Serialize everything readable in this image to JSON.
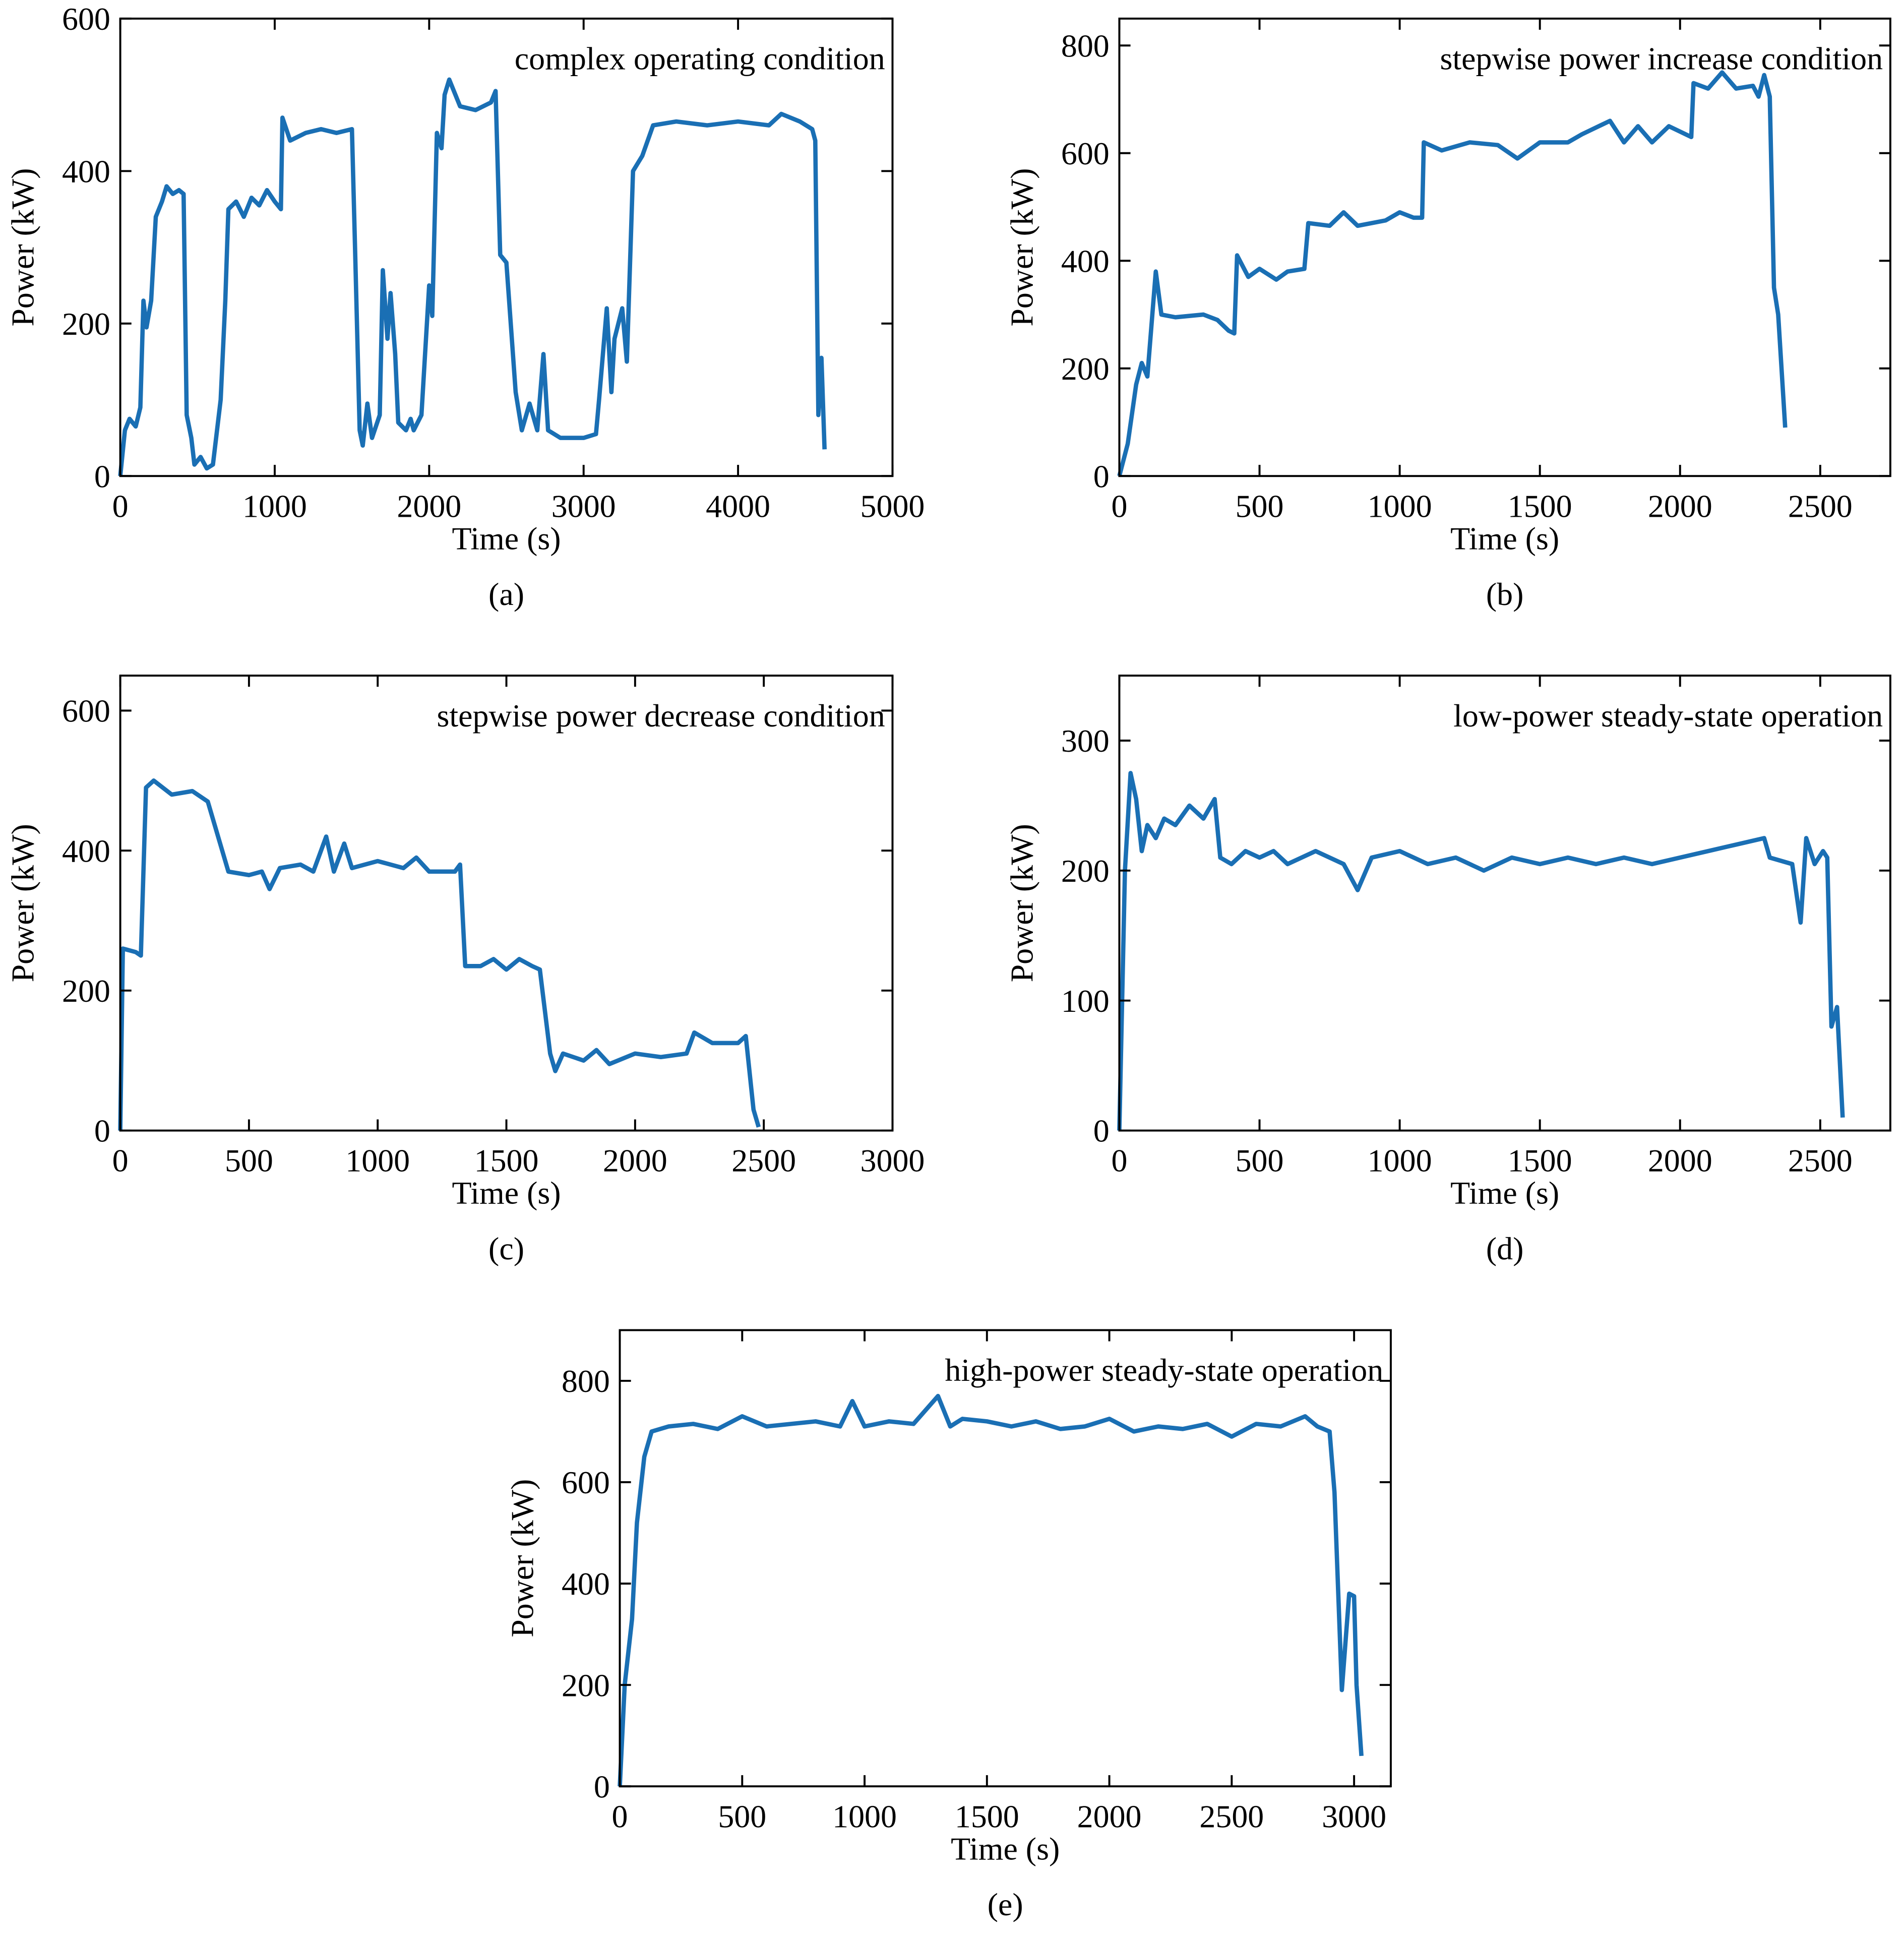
{
  "chart_data": [
    {
      "type": "line",
      "title": "complex operating condition",
      "panel": "(a)",
      "xlabel": "Time (s)",
      "ylabel": "Power (kW)",
      "color": "#1a6fb4",
      "xlim": [
        0,
        5000
      ],
      "xticks": [
        0,
        1000,
        2000,
        3000,
        4000,
        5000
      ],
      "ylim": [
        0,
        600
      ],
      "yticks": [
        0,
        200,
        400,
        600
      ],
      "x": [
        0,
        30,
        60,
        100,
        130,
        150,
        170,
        200,
        230,
        270,
        300,
        340,
        380,
        410,
        430,
        460,
        480,
        520,
        560,
        600,
        650,
        680,
        700,
        750,
        800,
        850,
        900,
        950,
        1000,
        1040,
        1050,
        1100,
        1200,
        1300,
        1400,
        1500,
        1520,
        1550,
        1570,
        1600,
        1630,
        1680,
        1700,
        1730,
        1750,
        1780,
        1800,
        1850,
        1880,
        1900,
        1950,
        2000,
        2020,
        2050,
        2080,
        2100,
        2130,
        2200,
        2300,
        2400,
        2430,
        2460,
        2500,
        2560,
        2600,
        2650,
        2700,
        2740,
        2770,
        2850,
        3000,
        3080,
        3100,
        3150,
        3180,
        3200,
        3250,
        3280,
        3320,
        3380,
        3450,
        3600,
        3800,
        4000,
        4200,
        4280,
        4400,
        4480,
        4500,
        4520,
        4540,
        4560
      ],
      "values": [
        0,
        60,
        75,
        65,
        90,
        230,
        195,
        230,
        340,
        360,
        380,
        370,
        375,
        370,
        80,
        50,
        15,
        25,
        10,
        15,
        100,
        230,
        350,
        360,
        340,
        365,
        355,
        375,
        360,
        350,
        470,
        440,
        450,
        455,
        450,
        455,
        300,
        60,
        40,
        95,
        50,
        80,
        270,
        180,
        240,
        160,
        70,
        60,
        75,
        60,
        80,
        250,
        210,
        450,
        430,
        500,
        520,
        485,
        480,
        490,
        505,
        290,
        280,
        110,
        60,
        95,
        60,
        160,
        60,
        50,
        50,
        55,
        100,
        220,
        110,
        180,
        220,
        150,
        400,
        420,
        460,
        465,
        460,
        465,
        460,
        475,
        465,
        455,
        440,
        80,
        155,
        35
      ]
    },
    {
      "type": "line",
      "title": "stepwise power increase condition",
      "panel": "(b)",
      "xlabel": "Time (s)",
      "ylabel": "Power (kW)",
      "color": "#1a6fb4",
      "xlim": [
        0,
        2750
      ],
      "xticks": [
        0,
        500,
        1000,
        1500,
        2000,
        2500
      ],
      "ylim": [
        0,
        850
      ],
      "yticks": [
        0,
        200,
        400,
        600,
        800
      ],
      "x": [
        0,
        30,
        60,
        80,
        100,
        130,
        150,
        200,
        300,
        350,
        390,
        410,
        420,
        460,
        500,
        560,
        600,
        660,
        674,
        750,
        800,
        850,
        950,
        1000,
        1050,
        1080,
        1086,
        1150,
        1250,
        1350,
        1420,
        1500,
        1600,
        1650,
        1750,
        1800,
        1850,
        1900,
        1960,
        2040,
        2048,
        2100,
        2150,
        2200,
        2260,
        2280,
        2300,
        2320,
        2335,
        2350,
        2375
      ],
      "values": [
        0,
        60,
        170,
        210,
        185,
        380,
        300,
        295,
        300,
        290,
        270,
        265,
        410,
        370,
        385,
        365,
        380,
        385,
        470,
        465,
        490,
        465,
        475,
        490,
        480,
        480,
        620,
        605,
        620,
        615,
        590,
        620,
        620,
        635,
        660,
        620,
        650,
        620,
        650,
        630,
        730,
        720,
        750,
        720,
        725,
        705,
        745,
        705,
        350,
        300,
        90
      ]
    },
    {
      "type": "line",
      "title": "stepwise power decrease condition",
      "panel": "(c)",
      "xlabel": "Time (s)",
      "ylabel": "Power (kW)",
      "color": "#1a6fb4",
      "xlim": [
        0,
        3000
      ],
      "xticks": [
        0,
        500,
        1000,
        1500,
        2000,
        2500,
        3000
      ],
      "ylim": [
        0,
        650
      ],
      "yticks": [
        0,
        200,
        400,
        600
      ],
      "x": [
        0,
        10,
        60,
        80,
        100,
        130,
        200,
        280,
        340,
        380,
        420,
        500,
        550,
        580,
        620,
        700,
        750,
        800,
        830,
        870,
        900,
        1000,
        1100,
        1150,
        1200,
        1300,
        1320,
        1340,
        1400,
        1450,
        1500,
        1550,
        1600,
        1630,
        1670,
        1690,
        1720,
        1800,
        1850,
        1900,
        2000,
        2100,
        2200,
        2230,
        2300,
        2400,
        2430,
        2460,
        2480
      ],
      "values": [
        0,
        260,
        255,
        250,
        490,
        500,
        480,
        485,
        470,
        420,
        370,
        365,
        370,
        345,
        375,
        380,
        370,
        420,
        370,
        410,
        375,
        385,
        375,
        390,
        370,
        370,
        380,
        235,
        235,
        245,
        230,
        245,
        235,
        230,
        110,
        85,
        110,
        100,
        115,
        95,
        110,
        105,
        110,
        140,
        125,
        125,
        135,
        30,
        5
      ]
    },
    {
      "type": "line",
      "title": "low-power steady-state operation",
      "panel": "(d)",
      "xlabel": "Time (s)",
      "ylabel": "Power (kW)",
      "color": "#1a6fb4",
      "xlim": [
        0,
        2750
      ],
      "xticks": [
        0,
        500,
        1000,
        1500,
        2000,
        2500
      ],
      "ylim": [
        0,
        350
      ],
      "yticks": [
        0,
        100,
        200,
        300
      ],
      "x": [
        0,
        20,
        40,
        60,
        80,
        100,
        130,
        160,
        200,
        250,
        300,
        340,
        360,
        400,
        450,
        500,
        550,
        600,
        700,
        800,
        850,
        900,
        1000,
        1100,
        1200,
        1300,
        1400,
        1500,
        1600,
        1700,
        1800,
        1900,
        2000,
        2100,
        2200,
        2300,
        2320,
        2400,
        2430,
        2450,
        2480,
        2510,
        2525,
        2540,
        2560,
        2580
      ],
      "values": [
        0,
        200,
        275,
        255,
        215,
        235,
        225,
        240,
        235,
        250,
        240,
        255,
        210,
        205,
        215,
        210,
        215,
        205,
        215,
        205,
        185,
        210,
        215,
        205,
        210,
        200,
        210,
        205,
        210,
        205,
        210,
        205,
        210,
        215,
        220,
        225,
        210,
        205,
        160,
        225,
        205,
        215,
        210,
        80,
        95,
        10
      ]
    },
    {
      "type": "line",
      "title": "high-power steady-state operation",
      "panel": "(e)",
      "xlabel": "Time (s)",
      "ylabel": "Power (kW)",
      "color": "#1a6fb4",
      "xlim": [
        0,
        3150
      ],
      "xticks": [
        0,
        500,
        1000,
        1500,
        2000,
        2500,
        3000
      ],
      "ylim": [
        0,
        900
      ],
      "yticks": [
        0,
        200,
        400,
        600,
        800
      ],
      "x": [
        0,
        20,
        50,
        70,
        100,
        130,
        200,
        300,
        400,
        500,
        600,
        700,
        800,
        900,
        950,
        1000,
        1100,
        1200,
        1300,
        1350,
        1400,
        1500,
        1600,
        1700,
        1800,
        1900,
        2000,
        2100,
        2200,
        2300,
        2400,
        2500,
        2600,
        2700,
        2800,
        2850,
        2900,
        2920,
        2950,
        2980,
        3000,
        3010,
        3030
      ],
      "values": [
        0,
        200,
        330,
        520,
        650,
        700,
        710,
        715,
        705,
        730,
        710,
        715,
        720,
        710,
        760,
        710,
        720,
        715,
        770,
        710,
        725,
        720,
        710,
        720,
        705,
        710,
        725,
        700,
        710,
        705,
        715,
        690,
        715,
        710,
        730,
        710,
        700,
        580,
        190,
        380,
        375,
        200,
        60
      ]
    }
  ]
}
